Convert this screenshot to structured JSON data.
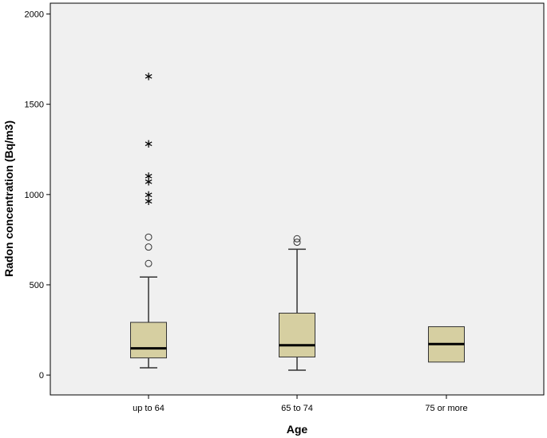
{
  "chart_data": {
    "type": "boxplot",
    "title": "",
    "xlabel": "Age",
    "ylabel": "Radon concentration (Bq/m3)",
    "ylim": [
      -110,
      2060
    ],
    "yticks": [
      0,
      500,
      1000,
      1500,
      2000
    ],
    "grid": false,
    "colors": {
      "plot_background": "#f0f0f0",
      "box_fill": "#d6cfa1",
      "box_stroke": "#333333"
    },
    "categories": [
      "up to 64",
      "65 to 74",
      "75 or more"
    ],
    "boxes": [
      {
        "category": "up to 64",
        "whisker_low": 40,
        "q1": 95,
        "median": 148,
        "q3": 292,
        "whisker_high": 543,
        "outliers_circle": [
          618,
          709,
          764
        ],
        "outliers_extreme": [
          973,
          1009,
          1082,
          1113,
          1291,
          1664
        ]
      },
      {
        "category": "65 to 74",
        "whisker_low": 27,
        "q1": 100,
        "median": 165,
        "q3": 343,
        "whisker_high": 697,
        "outliers_circle": [
          736,
          755
        ],
        "outliers_extreme": []
      },
      {
        "category": "75 or more",
        "whisker_low": 72,
        "q1": 72,
        "median": 172,
        "q3": 268,
        "whisker_high": 268,
        "outliers_circle": [],
        "outliers_extreme": []
      }
    ]
  }
}
